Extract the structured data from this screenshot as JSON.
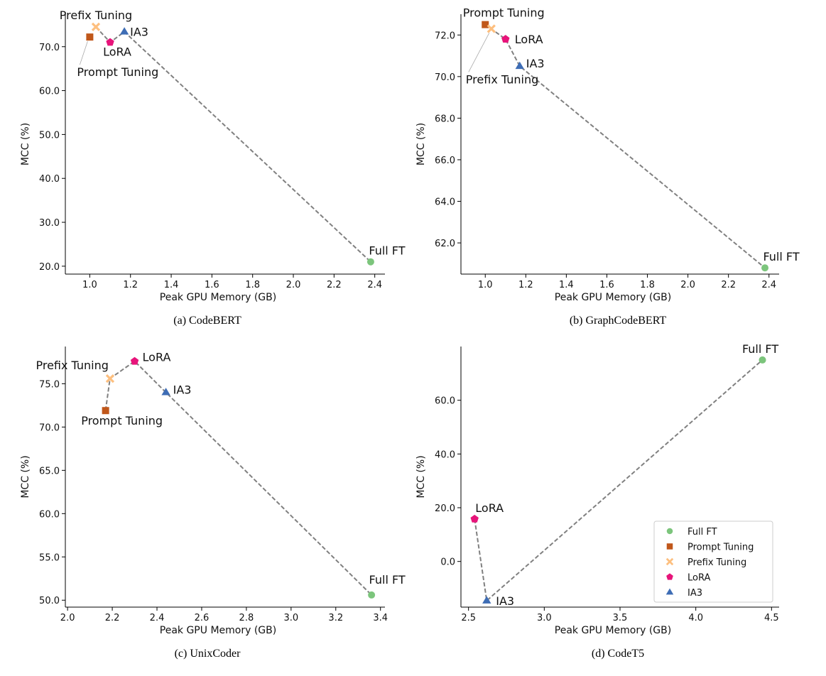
{
  "legend_order": [
    "Full FT",
    "Prompt Tuning",
    "Prefix Tuning",
    "LoRA",
    "IA3"
  ],
  "method_styles": {
    "Full FT": {
      "color": "#7cc57c",
      "marker": "circle",
      "icon": "circle-marker-icon"
    },
    "Prompt Tuning": {
      "color": "#c0571a",
      "marker": "square",
      "icon": "square-marker-icon"
    },
    "Prefix Tuning": {
      "color": "#fdbf7f",
      "marker": "x",
      "icon": "x-marker-icon"
    },
    "LoRA": {
      "color": "#e7147a",
      "marker": "pentagon",
      "icon": "pentagon-marker-icon"
    },
    "IA3": {
      "color": "#3e6db5",
      "marker": "triangle",
      "icon": "triangle-marker-icon"
    }
  },
  "line_color": "#808080",
  "chart_data": [
    {
      "type": "scatter",
      "title": "(a) CodeBERT",
      "xlabel": "Peak GPU Memory (GB)",
      "ylabel": "MCC (%)",
      "xlim": [
        0.88,
        2.45
      ],
      "ylim": [
        18.2,
        77.4
      ],
      "xticks": [
        1.0,
        1.2,
        1.4,
        1.6,
        1.8,
        2.0,
        2.2,
        2.4
      ],
      "xtick_labels": [
        "1.0",
        "1.2",
        "1.4",
        "1.6",
        "1.8",
        "2.0",
        "2.2",
        "2.4"
      ],
      "yticks": [
        20,
        30,
        40,
        50,
        60,
        70
      ],
      "ytick_labels": [
        "20.0",
        "30.0",
        "40.0",
        "50.0",
        "60.0",
        "70.0"
      ],
      "points": [
        {
          "method": "Prompt Tuning",
          "x": 1.0,
          "y": 72.2
        },
        {
          "method": "Prefix Tuning",
          "x": 1.03,
          "y": 74.5
        },
        {
          "method": "LoRA",
          "x": 1.1,
          "y": 71.0
        },
        {
          "method": "IA3",
          "x": 1.17,
          "y": 73.4
        },
        {
          "method": "Full FT",
          "x": 2.38,
          "y": 21.0
        }
      ],
      "line_order": [
        "Prefix Tuning",
        "LoRA",
        "IA3",
        "Full FT"
      ],
      "labels": [
        {
          "text": "Prefix Tuning",
          "method": "Prefix Tuning",
          "anchor": "middle",
          "dx": 0,
          "dy": -11
        },
        {
          "text": "IA3",
          "method": "IA3",
          "anchor": "start",
          "dx": 8,
          "dy": 6
        },
        {
          "text": "LoRA",
          "method": "LoRA",
          "anchor": "middle",
          "dx": 10,
          "dy": 19
        },
        {
          "text": "Prompt Tuning",
          "method": "Prompt Tuning",
          "anchor": "start",
          "dx": -18,
          "dy": 55,
          "leader": true
        },
        {
          "text": "Full FT",
          "method": "Full FT",
          "anchor": "middle",
          "dx": 23,
          "dy": -10
        }
      ],
      "legend": false
    },
    {
      "type": "scatter",
      "title": "(b) GraphCodeBERT",
      "xlabel": "Peak GPU Memory (GB)",
      "ylabel": "MCC (%)",
      "xlim": [
        0.88,
        2.45
      ],
      "ylim": [
        60.5,
        73.0
      ],
      "xticks": [
        1.0,
        1.2,
        1.4,
        1.6,
        1.8,
        2.0,
        2.2,
        2.4
      ],
      "xtick_labels": [
        "1.0",
        "1.2",
        "1.4",
        "1.6",
        "1.8",
        "2.0",
        "2.2",
        "2.4"
      ],
      "yticks": [
        62,
        64,
        66,
        68,
        70,
        72
      ],
      "ytick_labels": [
        "62.0",
        "64.0",
        "66.0",
        "68.0",
        "70.0",
        "72.0"
      ],
      "points": [
        {
          "method": "Prompt Tuning",
          "x": 1.0,
          "y": 72.5
        },
        {
          "method": "Prefix Tuning",
          "x": 1.03,
          "y": 72.3
        },
        {
          "method": "LoRA",
          "x": 1.1,
          "y": 71.8
        },
        {
          "method": "IA3",
          "x": 1.17,
          "y": 70.5
        },
        {
          "method": "Full FT",
          "x": 2.38,
          "y": 60.8
        }
      ],
      "line_order": [
        "Prompt Tuning",
        "LoRA",
        "IA3",
        "Full FT"
      ],
      "labels": [
        {
          "text": "Prompt Tuning",
          "method": "Prompt Tuning",
          "anchor": "middle",
          "dx": 26,
          "dy": -11
        },
        {
          "text": "LoRA",
          "method": "LoRA",
          "anchor": "start",
          "dx": 13,
          "dy": 6
        },
        {
          "text": "IA3",
          "method": "IA3",
          "anchor": "start",
          "dx": 9,
          "dy": 2
        },
        {
          "text": "Prefix Tuning",
          "method": "Prefix Tuning",
          "anchor": "start",
          "dx": -36,
          "dy": 77,
          "leader": true
        },
        {
          "text": "Full FT",
          "method": "Full FT",
          "anchor": "middle",
          "dx": 23,
          "dy": -10
        }
      ],
      "legend": false
    },
    {
      "type": "scatter",
      "title": "(c) UnixCoder",
      "xlabel": "Peak GPU Memory (GB)",
      "ylabel": "MCC (%)",
      "xlim": [
        1.99,
        3.42
      ],
      "ylim": [
        49.2,
        79.3
      ],
      "xticks": [
        2.0,
        2.2,
        2.4,
        2.6,
        2.8,
        3.0,
        3.2,
        3.4
      ],
      "xtick_labels": [
        "2.0",
        "2.2",
        "2.4",
        "2.6",
        "2.8",
        "3.0",
        "3.2",
        "3.4"
      ],
      "yticks": [
        50,
        55,
        60,
        65,
        70,
        75
      ],
      "ytick_labels": [
        "50.0",
        "55.0",
        "60.0",
        "65.0",
        "70.0",
        "75.0"
      ],
      "points": [
        {
          "method": "Prompt Tuning",
          "x": 2.17,
          "y": 71.9
        },
        {
          "method": "Prefix Tuning",
          "x": 2.19,
          "y": 75.6
        },
        {
          "method": "LoRA",
          "x": 2.3,
          "y": 77.6
        },
        {
          "method": "IA3",
          "x": 2.44,
          "y": 74.0
        },
        {
          "method": "Full FT",
          "x": 3.36,
          "y": 50.6
        }
      ],
      "line_order": [
        "Prompt Tuning",
        "Prefix Tuning",
        "LoRA",
        "IA3",
        "Full FT"
      ],
      "labels": [
        {
          "text": "Prefix Tuning",
          "method": "Prefix Tuning",
          "anchor": "end",
          "dx": -2,
          "dy": -13
        },
        {
          "text": "LoRA",
          "method": "LoRA",
          "anchor": "start",
          "dx": 11,
          "dy": 0
        },
        {
          "text": "IA3",
          "method": "IA3",
          "anchor": "start",
          "dx": 10,
          "dy": 2
        },
        {
          "text": "Prompt Tuning",
          "method": "Prompt Tuning",
          "anchor": "middle",
          "dx": 23,
          "dy": 20
        },
        {
          "text": "Full FT",
          "method": "Full FT",
          "anchor": "middle",
          "dx": 22,
          "dy": -16
        }
      ],
      "legend": false
    },
    {
      "type": "scatter",
      "title": "(d) CodeT5",
      "xlabel": "Peak GPU Memory (GB)",
      "ylabel": "MCC (%)",
      "xlim": [
        2.45,
        4.55
      ],
      "ylim": [
        -17.0,
        80.0
      ],
      "xticks": [
        2.5,
        3.0,
        3.5,
        4.0,
        4.5
      ],
      "xtick_labels": [
        "2.5",
        "3.0",
        "3.5",
        "4.0",
        "4.5"
      ],
      "yticks": [
        0,
        20,
        40,
        60
      ],
      "ytick_labels": [
        "0.0",
        "20.0",
        "40.0",
        "60.0"
      ],
      "points": [
        {
          "method": "LoRA",
          "x": 2.54,
          "y": 15.8
        },
        {
          "method": "IA3",
          "x": 2.62,
          "y": -14.6
        },
        {
          "method": "Full FT",
          "x": 4.44,
          "y": 75.0
        }
      ],
      "line_order": [
        "LoRA",
        "IA3",
        "Full FT"
      ],
      "labels": [
        {
          "text": "LoRA",
          "method": "LoRA",
          "anchor": "middle",
          "dx": 21,
          "dy": -10
        },
        {
          "text": "IA3",
          "method": "IA3",
          "anchor": "start",
          "dx": 13,
          "dy": 6
        },
        {
          "text": "Full FT",
          "method": "Full FT",
          "anchor": "middle",
          "dx": -3,
          "dy": -10
        }
      ],
      "legend": true,
      "legend_location": "bottom-right"
    }
  ]
}
